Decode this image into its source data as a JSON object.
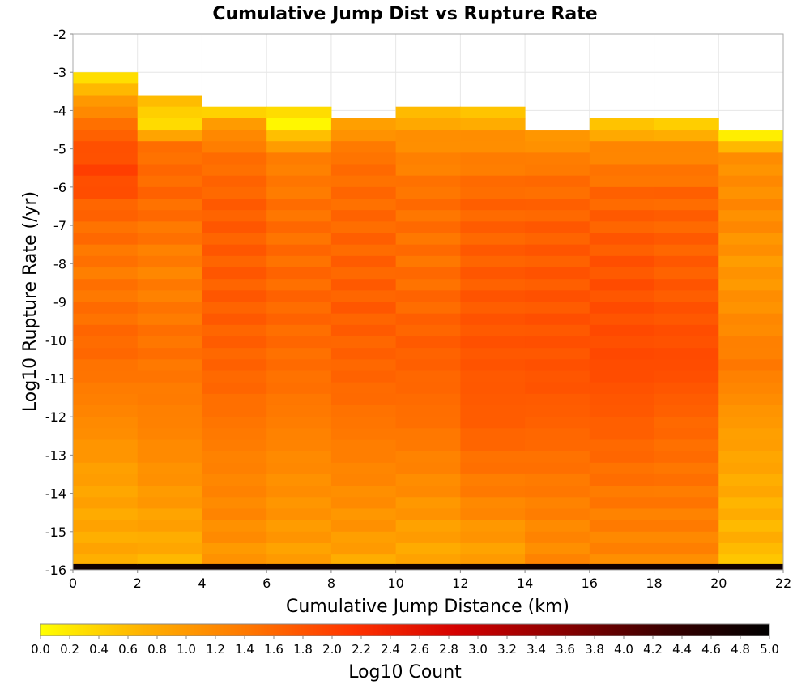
{
  "chart_data": {
    "type": "heatmap",
    "title": "Cumulative Jump Dist vs Rupture Rate",
    "xlabel": "Cumulative Jump Distance (km)",
    "ylabel": "Log10 Rupture Rate (/yr)",
    "colorbar_label": "Log10 Count",
    "xlim": [
      0,
      22
    ],
    "ylim": [
      -16,
      -2
    ],
    "xticks": [
      0,
      2,
      4,
      6,
      8,
      10,
      12,
      14,
      16,
      18,
      20,
      22
    ],
    "yticks": [
      -2,
      -3,
      -4,
      -5,
      -6,
      -7,
      -8,
      -9,
      -10,
      -11,
      -12,
      -13,
      -14,
      -15,
      -16
    ],
    "colorbar_range": [
      0.0,
      5.0
    ],
    "colorbar_ticks": [
      "0.0",
      "0.2",
      "0.4",
      "0.6",
      "0.8",
      "1.0",
      "1.2",
      "1.4",
      "1.6",
      "1.8",
      "2.0",
      "2.2",
      "2.4",
      "2.6",
      "2.8",
      "3.0",
      "3.2",
      "3.4",
      "3.6",
      "3.8",
      "4.0",
      "4.2",
      "4.4",
      "4.6",
      "4.8",
      "5.0"
    ],
    "colormap": "hot (yellow to black)",
    "colormap_stops": [
      "#ffff00",
      "#ffb000",
      "#ff7700",
      "#ff3300",
      "#d40000",
      "#8a0000",
      "#3a0000",
      "#000000"
    ],
    "grid": true,
    "x_bin_edges": [
      0,
      2,
      4,
      6,
      8,
      10,
      12,
      14,
      16,
      18,
      20,
      22
    ],
    "y_bin_size": 0.3,
    "column_tops": [
      -3.0,
      -3.6,
      -3.9,
      -3.9,
      -4.2,
      -3.9,
      -3.9,
      -4.5,
      -4.2,
      -4.2,
      -4.5
    ],
    "column_profiles": [
      [
        [
          -3.0,
          0.3
        ],
        [
          -3.6,
          1.0
        ],
        [
          -4.5,
          1.7
        ],
        [
          -5.5,
          2.0
        ],
        [
          -6.5,
          1.6
        ],
        [
          -8.0,
          1.4
        ],
        [
          -10.0,
          1.6
        ],
        [
          -12.0,
          1.2
        ],
        [
          -13.5,
          0.9
        ],
        [
          -15.0,
          0.8
        ],
        [
          -15.7,
          0.8
        ]
      ],
      [
        [
          -3.6,
          0.6
        ],
        [
          -4.2,
          0.3
        ],
        [
          -4.8,
          1.5
        ],
        [
          -6.0,
          1.6
        ],
        [
          -8.0,
          1.3
        ],
        [
          -10.0,
          1.5
        ],
        [
          -12.0,
          1.3
        ],
        [
          -14.0,
          1.0
        ],
        [
          -15.7,
          0.7
        ]
      ],
      [
        [
          -3.9,
          0.4
        ],
        [
          -4.2,
          1.0
        ],
        [
          -5.0,
          1.5
        ],
        [
          -6.5,
          1.7
        ],
        [
          -9.0,
          1.7
        ],
        [
          -11.0,
          1.6
        ],
        [
          -13.0,
          1.3
        ],
        [
          -14.5,
          1.2
        ],
        [
          -15.7,
          1.0
        ]
      ],
      [
        [
          -3.9,
          0.3
        ],
        [
          -4.2,
          0.1
        ],
        [
          -5.0,
          1.3
        ],
        [
          -6.5,
          1.5
        ],
        [
          -9.0,
          1.6
        ],
        [
          -11.0,
          1.5
        ],
        [
          -13.0,
          1.2
        ],
        [
          -15.0,
          1.0
        ],
        [
          -15.7,
          0.9
        ]
      ],
      [
        [
          -4.2,
          0.9
        ],
        [
          -5.0,
          1.5
        ],
        [
          -7.0,
          1.6
        ],
        [
          -9.0,
          1.7
        ],
        [
          -11.0,
          1.6
        ],
        [
          -13.0,
          1.3
        ],
        [
          -15.0,
          1.0
        ],
        [
          -15.7,
          0.8
        ]
      ],
      [
        [
          -3.9,
          0.6
        ],
        [
          -4.5,
          1.1
        ],
        [
          -6.0,
          1.5
        ],
        [
          -8.0,
          1.5
        ],
        [
          -10.0,
          1.7
        ],
        [
          -12.0,
          1.5
        ],
        [
          -13.5,
          1.2
        ],
        [
          -15.0,
          0.9
        ],
        [
          -15.7,
          0.8
        ]
      ],
      [
        [
          -3.9,
          0.5
        ],
        [
          -4.5,
          1.1
        ],
        [
          -6.0,
          1.6
        ],
        [
          -8.0,
          1.7
        ],
        [
          -10.0,
          1.8
        ],
        [
          -12.0,
          1.7
        ],
        [
          -14.0,
          1.3
        ],
        [
          -15.0,
          1.0
        ],
        [
          -15.7,
          0.9
        ]
      ],
      [
        [
          -4.5,
          1.0
        ],
        [
          -5.5,
          1.5
        ],
        [
          -7.0,
          1.7
        ],
        [
          -9.5,
          1.8
        ],
        [
          -11.0,
          1.8
        ],
        [
          -13.0,
          1.5
        ],
        [
          -15.0,
          1.2
        ],
        [
          -15.7,
          1.2
        ]
      ],
      [
        [
          -4.2,
          0.5
        ],
        [
          -4.8,
          1.2
        ],
        [
          -6.0,
          1.6
        ],
        [
          -8.0,
          1.8
        ],
        [
          -10.5,
          1.9
        ],
        [
          -12.0,
          1.7
        ],
        [
          -14.0,
          1.4
        ],
        [
          -15.7,
          1.2
        ]
      ],
      [
        [
          -4.2,
          0.4
        ],
        [
          -4.8,
          1.2
        ],
        [
          -6.0,
          1.6
        ],
        [
          -8.0,
          1.7
        ],
        [
          -10.5,
          1.9
        ],
        [
          -12.0,
          1.6
        ],
        [
          -14.0,
          1.4
        ],
        [
          -15.7,
          1.2
        ]
      ],
      [
        [
          -4.5,
          0.1
        ],
        [
          -5.0,
          1.1
        ],
        [
          -6.5,
          1.2
        ],
        [
          -8.0,
          1.0
        ],
        [
          -9.5,
          1.2
        ],
        [
          -10.5,
          1.4
        ],
        [
          -12.0,
          1.0
        ],
        [
          -13.5,
          0.8
        ],
        [
          -14.5,
          0.7
        ],
        [
          -15.4,
          0.7
        ],
        [
          -15.7,
          0.3
        ]
      ]
    ],
    "bottom_row": {
      "y_range": [
        -16.0,
        -15.85
      ],
      "log10_count": 4.8
    }
  }
}
